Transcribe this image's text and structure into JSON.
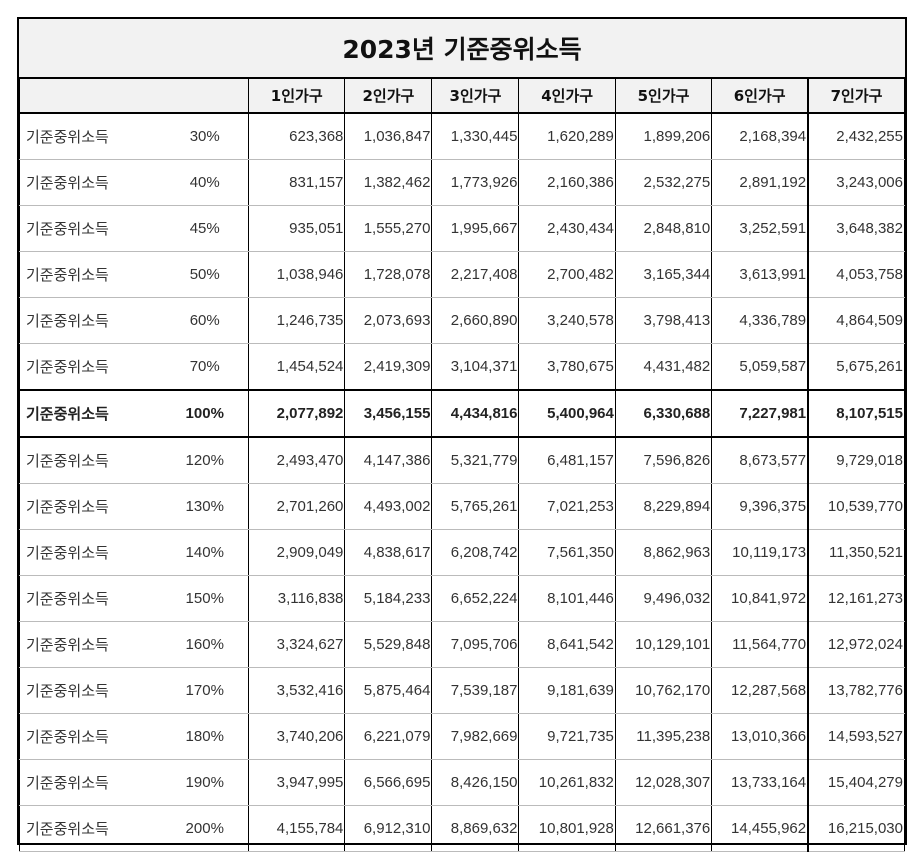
{
  "title": "2023년 기준중위소득",
  "headers": [
    "1인가구",
    "2인가구",
    "3인가구",
    "4인가구",
    "5인가구",
    "6인가구",
    "7인가구"
  ],
  "rows": [
    {
      "label": "기준중위소득",
      "pct": "30%",
      "values": [
        "623,368",
        "1,036,847",
        "1,330,445",
        "1,620,289",
        "1,899,206",
        "2,168,394",
        "2,432,255"
      ]
    },
    {
      "label": "기준중위소득",
      "pct": "40%",
      "values": [
        "831,157",
        "1,382,462",
        "1,773,926",
        "2,160,386",
        "2,532,275",
        "2,891,192",
        "3,243,006"
      ]
    },
    {
      "label": "기준중위소득",
      "pct": "45%",
      "values": [
        "935,051",
        "1,555,270",
        "1,995,667",
        "2,430,434",
        "2,848,810",
        "3,252,591",
        "3,648,382"
      ]
    },
    {
      "label": "기준중위소득",
      "pct": "50%",
      "values": [
        "1,038,946",
        "1,728,078",
        "2,217,408",
        "2,700,482",
        "3,165,344",
        "3,613,991",
        "4,053,758"
      ]
    },
    {
      "label": "기준중위소득",
      "pct": "60%",
      "values": [
        "1,246,735",
        "2,073,693",
        "2,660,890",
        "3,240,578",
        "3,798,413",
        "4,336,789",
        "4,864,509"
      ]
    },
    {
      "label": "기준중위소득",
      "pct": "70%",
      "values": [
        "1,454,524",
        "2,419,309",
        "3,104,371",
        "3,780,675",
        "4,431,482",
        "5,059,587",
        "5,675,261"
      ]
    },
    {
      "label": "기준중위소득",
      "pct": "100%",
      "values": [
        "2,077,892",
        "3,456,155",
        "4,434,816",
        "5,400,964",
        "6,330,688",
        "7,227,981",
        "8,107,515"
      ],
      "highlight": true
    },
    {
      "label": "기준중위소득",
      "pct": "120%",
      "values": [
        "2,493,470",
        "4,147,386",
        "5,321,779",
        "6,481,157",
        "7,596,826",
        "8,673,577",
        "9,729,018"
      ]
    },
    {
      "label": "기준중위소득",
      "pct": "130%",
      "values": [
        "2,701,260",
        "4,493,002",
        "5,765,261",
        "7,021,253",
        "8,229,894",
        "9,396,375",
        "10,539,770"
      ]
    },
    {
      "label": "기준중위소득",
      "pct": "140%",
      "values": [
        "2,909,049",
        "4,838,617",
        "6,208,742",
        "7,561,350",
        "8,862,963",
        "10,119,173",
        "11,350,521"
      ]
    },
    {
      "label": "기준중위소득",
      "pct": "150%",
      "values": [
        "3,116,838",
        "5,184,233",
        "6,652,224",
        "8,101,446",
        "9,496,032",
        "10,841,972",
        "12,161,273"
      ]
    },
    {
      "label": "기준중위소득",
      "pct": "160%",
      "values": [
        "3,324,627",
        "5,529,848",
        "7,095,706",
        "8,641,542",
        "10,129,101",
        "11,564,770",
        "12,972,024"
      ]
    },
    {
      "label": "기준중위소득",
      "pct": "170%",
      "values": [
        "3,532,416",
        "5,875,464",
        "7,539,187",
        "9,181,639",
        "10,762,170",
        "12,287,568",
        "13,782,776"
      ]
    },
    {
      "label": "기준중위소득",
      "pct": "180%",
      "values": [
        "3,740,206",
        "6,221,079",
        "7,982,669",
        "9,721,735",
        "11,395,238",
        "13,010,366",
        "14,593,527"
      ]
    },
    {
      "label": "기준중위소득",
      "pct": "190%",
      "values": [
        "3,947,995",
        "6,566,695",
        "8,426,150",
        "10,261,832",
        "12,028,307",
        "13,733,164",
        "15,404,279"
      ]
    },
    {
      "label": "기준중위소득",
      "pct": "200%",
      "values": [
        "4,155,784",
        "6,912,310",
        "8,869,632",
        "10,801,928",
        "12,661,376",
        "14,455,962",
        "16,215,030"
      ]
    }
  ]
}
